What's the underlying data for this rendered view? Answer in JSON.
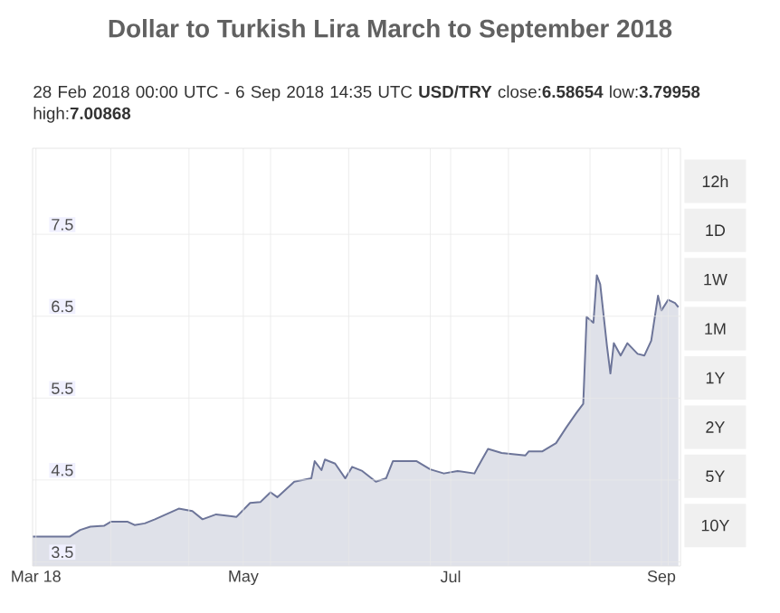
{
  "chart_data": {
    "type": "area",
    "title": "Dollar to Turkish Lira March to September 2018",
    "subtitle": "28 Feb 2018 00:00 UTC - 6 Sep 2018 14:35 UTC  **USD/TRY** close:**6.58654** low:**3.79958** high:**7.00868**",
    "x": [
      "2018-02-28",
      "2018-03-11",
      "2018-03-14",
      "2018-03-17",
      "2018-03-21",
      "2018-03-23",
      "2018-03-28",
      "2018-03-30",
      "2018-04-02",
      "2018-04-05",
      "2018-04-12",
      "2018-04-16",
      "2018-04-19",
      "2018-04-23",
      "2018-04-29",
      "2018-05-03",
      "2018-05-06",
      "2018-05-09",
      "2018-05-11",
      "2018-05-16",
      "2018-05-21",
      "2018-05-22",
      "2018-05-24",
      "2018-05-25",
      "2018-05-28",
      "2018-05-31",
      "2018-06-02",
      "2018-06-05",
      "2018-06-09",
      "2018-06-12",
      "2018-06-14",
      "2018-06-21",
      "2018-06-25",
      "2018-06-29",
      "2018-07-03",
      "2018-07-08",
      "2018-07-09",
      "2018-07-12",
      "2018-07-16",
      "2018-07-23",
      "2018-07-24",
      "2018-07-28",
      "2018-08-01",
      "2018-08-04",
      "2018-08-07",
      "2018-08-09",
      "2018-08-10",
      "2018-08-12",
      "2018-08-13",
      "2018-08-14",
      "2018-08-16",
      "2018-08-17",
      "2018-08-18",
      "2018-08-20",
      "2018-08-22",
      "2018-08-25",
      "2018-08-27",
      "2018-08-29",
      "2018-08-31",
      "2018-09-01",
      "2018-09-03",
      "2018-09-05",
      "2018-09-06"
    ],
    "series": [
      {
        "color": "#6d7599",
        "values": [
          3.81,
          3.81,
          3.89,
          3.93,
          3.94,
          3.99,
          3.99,
          3.95,
          3.97,
          4.02,
          4.15,
          4.12,
          4.02,
          4.08,
          4.05,
          4.22,
          4.23,
          4.35,
          4.29,
          4.48,
          4.52,
          4.73,
          4.62,
          4.75,
          4.7,
          4.52,
          4.66,
          4.61,
          4.48,
          4.52,
          4.73,
          4.73,
          4.63,
          4.58,
          4.61,
          4.58,
          4.66,
          4.88,
          4.83,
          4.8,
          4.85,
          4.85,
          4.95,
          5.14,
          5.32,
          5.43,
          6.49,
          6.42,
          7.0,
          6.89,
          6.13,
          5.8,
          6.17,
          6.02,
          6.17,
          6.04,
          6.02,
          6.2,
          6.75,
          6.57,
          6.7,
          6.66,
          6.61
        ]
      }
    ],
    "xlim": [
      "2018-02-28",
      "2018-09-06T14:35"
    ],
    "xticks": [
      {
        "value": "2018-03-01",
        "label": "Mar 18"
      },
      {
        "value": "2018-03-23",
        "label": null
      },
      {
        "value": "2018-04-15",
        "label": null
      },
      {
        "value": "2018-05-01",
        "label": "May"
      },
      {
        "value": "2018-05-09",
        "label": null
      },
      {
        "value": "2018-06-01",
        "label": null
      },
      {
        "value": "2018-06-25",
        "label": null
      },
      {
        "value": "2018-07-01",
        "label": "Jul"
      },
      {
        "value": "2018-07-18",
        "label": null
      },
      {
        "value": "2018-08-11",
        "label": null
      },
      {
        "value": "2018-09-01",
        "label": "Sep"
      },
      {
        "value": "2018-09-03",
        "label": null
      }
    ],
    "ylim": [
      3.45,
      8.55
    ],
    "yticks": [
      3.5,
      4.5,
      5.5,
      6.5,
      7.5
    ],
    "grid": true,
    "annotations": [
      "12h",
      "1D",
      "1W",
      "1M",
      "1Y",
      "2Y",
      "5Y",
      "10Y"
    ]
  }
}
